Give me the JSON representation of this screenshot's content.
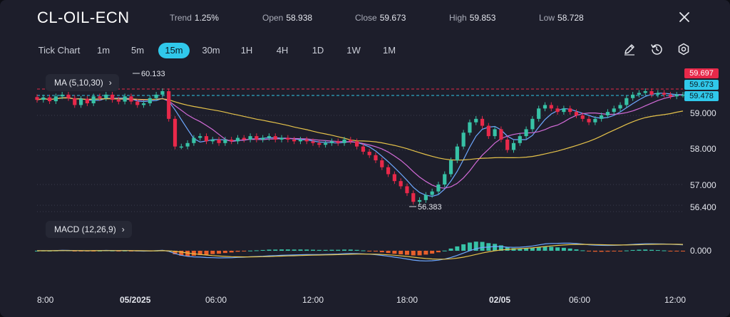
{
  "symbol": "CL-OIL-ECN",
  "stats": {
    "trend_label": "Trend",
    "trend_value": "1.25%",
    "open_label": "Open",
    "open_value": "58.938",
    "close_label": "Close",
    "close_value": "59.673",
    "high_label": "High",
    "high_value": "59.853",
    "low_label": "Low",
    "low_value": "58.728"
  },
  "timeframes": [
    "Tick Chart",
    "1m",
    "5m",
    "15m",
    "30m",
    "1H",
    "4H",
    "1D",
    "1W",
    "1M"
  ],
  "active_timeframe": "15m",
  "tools": [
    "pencil-icon",
    "reset-icon",
    "settings-icon"
  ],
  "indicators": {
    "ma_label": "MA (5,10,30)",
    "macd_label": "MACD (12,26,9)"
  },
  "price_axis": {
    "tags": [
      {
        "value": "59.697",
        "color": "#e8294a"
      },
      {
        "value": "59.673",
        "color": "#30c8ea"
      },
      {
        "value": "59.478",
        "color": "#30c8ea"
      }
    ],
    "ticks": [
      "59.000",
      "58.000",
      "57.000",
      "56.400"
    ],
    "macd_tick": "0.000"
  },
  "annotations": {
    "high_marker": "60.133",
    "low_marker": "56.383"
  },
  "time_axis": [
    "8:00",
    "05/2025",
    "06:00",
    "12:00",
    "18:00",
    "02/05",
    "06:00",
    "12:00"
  ],
  "chart_data": {
    "type": "candlestick",
    "title": "",
    "x_labels": [
      "8:00",
      "05/2025",
      "06:00",
      "12:00",
      "18:00",
      "02/05",
      "06:00",
      "12:00"
    ],
    "y_ticks": [
      56.4,
      57.0,
      58.0,
      59.0
    ],
    "ylim": [
      56.3,
      60.25
    ],
    "series": [
      {
        "name": "MA5",
        "color": "#6ea8ff"
      },
      {
        "name": "MA10",
        "color": "#d36bd8"
      },
      {
        "name": "MA30",
        "color": "#e6c34a"
      }
    ],
    "close_path": [
      59.45,
      59.52,
      59.41,
      59.55,
      59.6,
      59.5,
      59.3,
      59.48,
      59.35,
      59.55,
      59.5,
      59.6,
      59.45,
      59.4,
      59.55,
      59.4,
      59.3,
      59.35,
      59.5,
      59.6,
      59.7,
      58.9,
      58.1,
      58.1,
      58.2,
      58.35,
      58.4,
      58.25,
      58.3,
      58.2,
      58.3,
      58.25,
      58.35,
      58.3,
      58.4,
      58.3,
      58.35,
      58.4,
      58.3,
      58.35,
      58.3,
      58.25,
      58.3,
      58.25,
      58.2,
      58.15,
      58.2,
      58.25,
      58.2,
      58.3,
      58.25,
      58.1,
      57.95,
      57.85,
      57.7,
      57.5,
      57.3,
      57.1,
      56.95,
      56.75,
      56.5,
      56.55,
      56.7,
      56.8,
      57.0,
      57.3,
      57.7,
      58.1,
      58.5,
      58.8,
      58.9,
      58.7,
      58.4,
      58.6,
      58.3,
      58.0,
      58.2,
      58.4,
      58.6,
      58.9,
      59.2,
      59.3,
      59.2,
      59.1,
      59.2,
      59.1,
      59.0,
      58.9,
      58.8,
      58.9,
      59.0,
      59.1,
      59.2,
      59.3,
      59.5,
      59.6,
      59.65,
      59.7,
      59.6,
      59.65,
      59.6,
      59.55,
      59.6,
      59.6
    ],
    "macd_hist_color_up": "#37c2a6",
    "macd_hist_color_down": "#e8602c"
  }
}
